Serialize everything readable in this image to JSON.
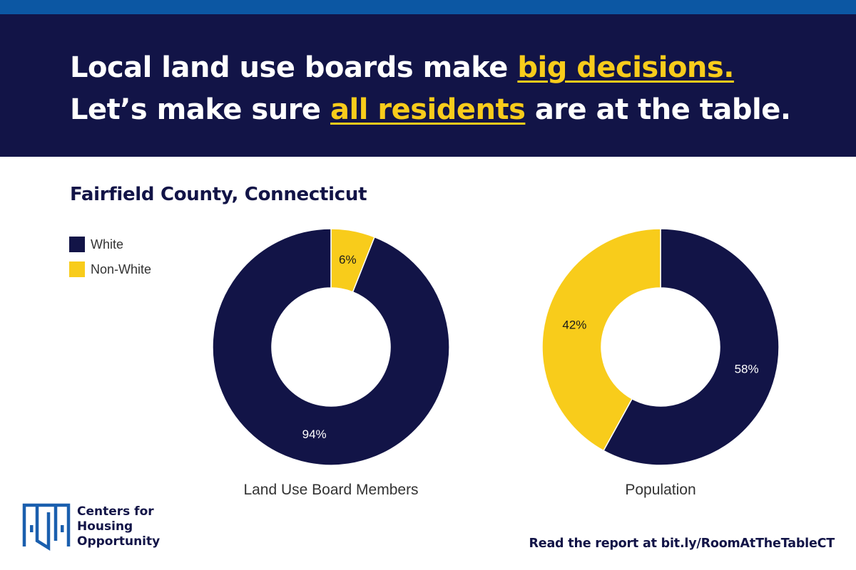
{
  "header": {
    "line1_prefix": "Local land use boards make ",
    "line1_highlight": "big decisions.",
    "line2_prefix": "Let’s make sure ",
    "line2_highlight": "all residents",
    "line2_suffix": " are at the table."
  },
  "colors": {
    "navy": "#121447",
    "yellow": "#f8cc1b",
    "blue_stripe": "#0c57a3"
  },
  "subtitle": "Fairfield County, Connecticut",
  "legend": [
    {
      "label": "White",
      "color": "#121447"
    },
    {
      "label": "Non-White",
      "color": "#f8cc1b"
    }
  ],
  "chart_data": [
    {
      "type": "pie",
      "donut": true,
      "title": "Land Use Board Members",
      "categories": [
        "Non-White",
        "White"
      ],
      "values": [
        6,
        94
      ],
      "labels": [
        "6%",
        "94%"
      ],
      "colors": [
        "#f8cc1b",
        "#121447"
      ]
    },
    {
      "type": "pie",
      "donut": true,
      "title": "Population",
      "categories": [
        "White",
        "Non-White"
      ],
      "values": [
        58,
        42
      ],
      "labels": [
        "58%",
        "42%"
      ],
      "colors": [
        "#121447",
        "#f8cc1b"
      ]
    }
  ],
  "logo": {
    "icon": "door-logo-icon",
    "text": "Centers for\nHousing\nOpportunity"
  },
  "footer": {
    "cta": "Read the report at bit.ly/RoomAtTheTableCT"
  }
}
